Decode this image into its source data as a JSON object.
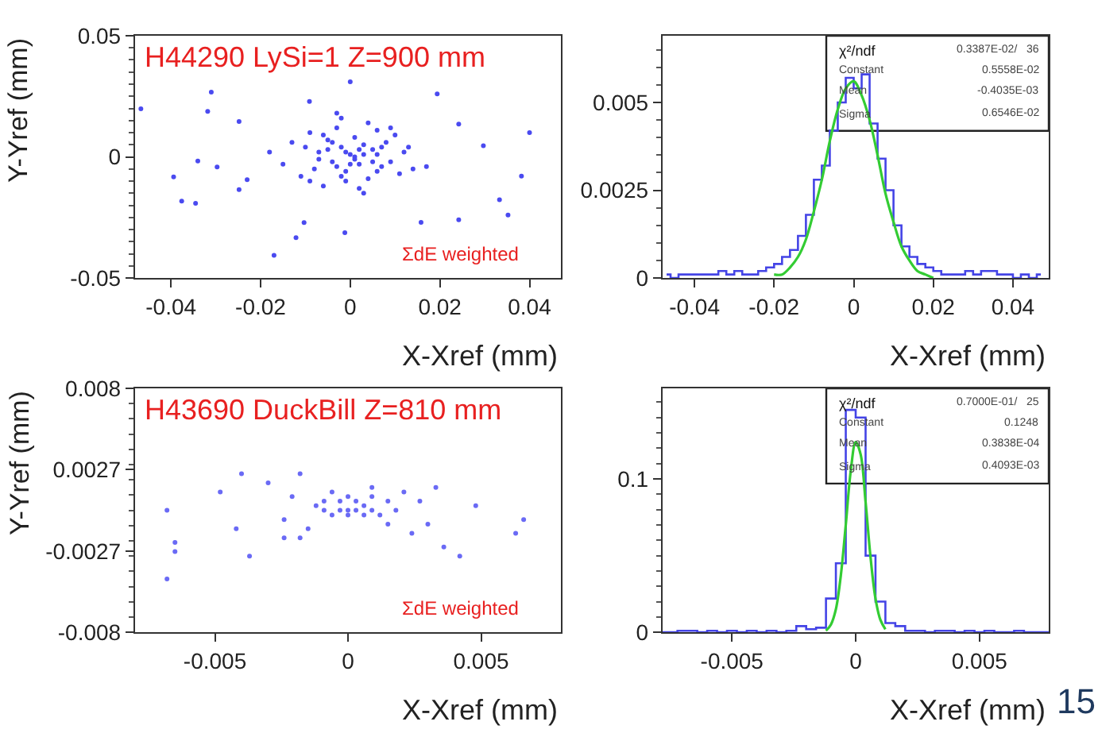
{
  "chart_data": [
    {
      "type": "scatter",
      "xlabel": "X-Xref (mm)",
      "ylabel": "Y-Yref (mm)",
      "marker": "circle",
      "annotations": [
        "H44290 LySi=1 Z=900 mm",
        "ΣdE weighted"
      ],
      "xlim": [
        -0.048,
        0.047
      ],
      "xticks": [
        -0.04,
        -0.02,
        0,
        0.02,
        0.04
      ],
      "ylim": [
        -0.05,
        0.05
      ],
      "yticks": [
        -0.05,
        0,
        0.05
      ],
      "series": [
        {
          "color": "#4a4af0",
          "x": [
            -0.0467,
            -0.0394,
            -0.0376,
            -0.0345,
            -0.0318,
            -0.031,
            -0.0297,
            -0.034,
            -0.0248,
            -0.023,
            -0.017,
            -0.0121,
            -0.0103,
            -0.0012,
            0.0194,
            0.0242,
            0.0297,
            0.0333,
            0.0352,
            0.0382,
            0.04,
            0.0158,
            0,
            -0.0091,
            -0.0248,
            0.0242,
            0.017,
            -0.018,
            -0.015,
            -0.013,
            -0.011,
            -0.01,
            -0.009,
            -0.008,
            -0.007,
            -0.006,
            -0.005,
            -0.004,
            -0.003,
            -0.002,
            -0.001,
            0,
            0.001,
            0.002,
            0.003,
            0.004,
            0.005,
            0.006,
            0.007,
            0.008,
            0.009,
            0.01,
            0.011,
            0.012,
            0.013,
            0.014,
            -0.007,
            -0.005,
            -0.003,
            -0.001,
            0.001,
            0.003,
            0.005,
            0.007,
            -0.004,
            -0.002,
            0,
            0.002,
            0.004,
            0.006,
            -0.006,
            -0.002,
            0.002,
            0.006,
            0.009,
            -0.009,
            0.003,
            -0.003,
            0.001,
            -0.001
          ],
          "values": [
            0.0198,
            -0.0083,
            -0.0183,
            -0.0192,
            0.0188,
            0.0267,
            -0.0042,
            -0.0017,
            -0.0135,
            -0.0094,
            -0.0406,
            -0.0333,
            -0.0271,
            -0.0313,
            0.026,
            -0.026,
            0.0046,
            -0.0177,
            -0.024,
            -0.0079,
            0.01,
            -0.027,
            0.031,
            0.0229,
            0.0146,
            0.0135,
            -0.004,
            0.002,
            -0.003,
            0.006,
            -0.008,
            0.004,
            0.01,
            -0.005,
            0.002,
            -0.012,
            0.007,
            -0.002,
            0.012,
            0.004,
            -0.006,
            0.001,
            0.008,
            -0.003,
            0.005,
            -0.009,
            0.003,
            0.011,
            -0.004,
            0.006,
            -0.002,
            0.009,
            -0.007,
            0.002,
            0.004,
            -0.005,
            -0.001,
            0.003,
            -0.004,
            0.002,
            -0.001,
            0.001,
            -0.002,
            0.004,
            0.006,
            -0.008,
            -0.003,
            0.003,
            0.014,
            -0.006,
            0.009,
            0.016,
            -0.013,
            0.001,
            0.012,
            -0.01,
            -0.015,
            0.018,
            0,
            -0.01
          ]
        }
      ]
    },
    {
      "type": "step",
      "xlabel": "X-Xref (mm)",
      "annotations": [
        "χ²/ndf",
        "0.3387E-02/   36",
        "Constant",
        "0.5558E-02",
        "Mean",
        "-0.4035E-03",
        "Sigma",
        "0.6546E-02"
      ],
      "xlim": [
        -0.048,
        0.049
      ],
      "xticks": [
        -0.04,
        -0.02,
        0,
        0.02,
        0.04
      ],
      "ylim": [
        0,
        0.0069
      ],
      "yticks": [
        0,
        0.0025,
        0.005
      ],
      "series": [
        {
          "type": "step",
          "color": "#4444e6",
          "x": [
            -0.047,
            -0.045,
            -0.043,
            -0.041,
            -0.039,
            -0.037,
            -0.035,
            -0.033,
            -0.031,
            -0.029,
            -0.027,
            -0.025,
            -0.023,
            -0.021,
            -0.019,
            -0.017,
            -0.015,
            -0.013,
            -0.011,
            -0.009,
            -0.007,
            -0.005,
            -0.003,
            -0.001,
            0.001,
            0.003,
            0.005,
            0.007,
            0.009,
            0.011,
            0.013,
            0.015,
            0.017,
            0.019,
            0.021,
            0.023,
            0.025,
            0.027,
            0.029,
            0.031,
            0.033,
            0.035,
            0.037,
            0.039,
            0.041,
            0.043,
            0.045,
            0.047
          ],
          "values": [
            0.0001,
            0,
            0.0001,
            0.0001,
            0.0001,
            0.0001,
            0.0001,
            0.0002,
            0.0001,
            0.0002,
            0.0001,
            0.0001,
            0.0002,
            0.0003,
            0.0004,
            0.0006,
            0.0008,
            0.0012,
            0.0018,
            0.0028,
            0.0032,
            0.0042,
            0.005,
            0.0057,
            0.0054,
            0.0058,
            0.0044,
            0.0034,
            0.0025,
            0.0015,
            0.0009,
            0.0006,
            0.0004,
            0.0003,
            0.0002,
            0.0001,
            0.0001,
            0.0001,
            0.0002,
            0.0001,
            0.0002,
            0.0002,
            0.0001,
            0.0001,
            0,
            0.0001,
            0,
            0.0001
          ]
        },
        {
          "type": "line",
          "color": "#33cc33",
          "x": [
            -0.02,
            -0.018,
            -0.016,
            -0.014,
            -0.012,
            -0.01,
            -0.008,
            -0.006,
            -0.004,
            -0.002,
            0,
            0.002,
            0.004,
            0.006,
            0.008,
            0.01,
            0.012,
            0.014,
            0.016,
            0.018,
            0.02
          ],
          "values": [
            0.0001,
            0.0001,
            0.0003,
            0.0006,
            0.0011,
            0.0019,
            0.0028,
            0.0039,
            0.0048,
            0.0054,
            0.0056,
            0.0052,
            0.0045,
            0.0035,
            0.0024,
            0.0016,
            0.0009,
            0.0005,
            0.0002,
            0.0001,
            0
          ]
        }
      ]
    },
    {
      "type": "scatter",
      "xlabel": "X-Xref (mm)",
      "ylabel": "Y-Yref (mm)",
      "marker": "circle",
      "annotations": [
        "H43690 DuckBill Z=810 mm",
        "ΣdE weighted"
      ],
      "xlim": [
        -0.008,
        0.008
      ],
      "xticks": [
        -0.005,
        0,
        0.005
      ],
      "ylim": [
        -0.008,
        0.008
      ],
      "yticks": [
        -0.008,
        {
          "value": -0.00267,
          "label": "-0.0027"
        },
        {
          "value": 0.00267,
          "label": "0.0027"
        },
        0.008
      ],
      "series": [
        {
          "color": "#6a6af5",
          "x": [
            -0.0068,
            -0.0065,
            -0.0065,
            -0.0068,
            -0.0048,
            -0.0042,
            -0.004,
            -0.0037,
            -0.003,
            -0.0024,
            -0.0024,
            -0.0021,
            -0.0018,
            -0.0018,
            -0.0012,
            -0.0009,
            -0.0009,
            -0.0006,
            -0.0006,
            -0.0003,
            -0.0003,
            0,
            0,
            0,
            0.0003,
            0.0003,
            0.0006,
            0.0006,
            0.0009,
            0.0009,
            0.0012,
            0.0015,
            0.0018,
            0.0021,
            0.0024,
            0.0027,
            0.003,
            0.0033,
            0.0036,
            0.0042,
            0.0048,
            0.0063,
            0.0066,
            0.0009,
            -0.0015,
            0.0015
          ],
          "values": [
            0.0,
            -0.0027,
            -0.0021,
            -0.0045,
            0.0012,
            -0.0012,
            0.0024,
            -0.003,
            0.0018,
            -0.0006,
            -0.0018,
            0.0009,
            -0.0018,
            0.0024,
            0.0003,
            0.0,
            0.0006,
            -0.0003,
            0.0012,
            0.0,
            0.0006,
            0.0,
            -0.0003,
            0.0009,
            0.0,
            0.0006,
            -0.0003,
            0.0003,
            0.0,
            0.0009,
            -0.0003,
            0.0006,
            0.0,
            0.0012,
            -0.0015,
            0.0006,
            -0.0009,
            0.0015,
            -0.0024,
            -0.003,
            0.0003,
            -0.0015,
            -0.0006,
            0.0015,
            -0.0012,
            -0.0009
          ]
        }
      ]
    },
    {
      "type": "step",
      "xlabel": "X-Xref (mm)",
      "annotations": [
        "χ²/ndf",
        "0.7000E-01/   25",
        "Constant",
        "0.1248",
        "Mean",
        "0.3838E-04",
        "Sigma",
        "0.4093E-03",
        "15"
      ],
      "xlim": [
        -0.0078,
        0.0078
      ],
      "xticks": [
        -0.005,
        0,
        0.005
      ],
      "ylim": [
        0,
        0.159
      ],
      "yticks": [
        0,
        0.1
      ],
      "series": [
        {
          "type": "step",
          "color": "#4444e6",
          "x": [
            -0.0078,
            -0.0074,
            -0.007,
            -0.0066,
            -0.0062,
            -0.0058,
            -0.0054,
            -0.005,
            -0.0046,
            -0.0042,
            -0.0038,
            -0.0034,
            -0.003,
            -0.0026,
            -0.0022,
            -0.0018,
            -0.0014,
            -0.001,
            -0.0006,
            -0.0002,
            0.0002,
            0.0006,
            0.001,
            0.0014,
            0.0018,
            0.0022,
            0.0026,
            0.003,
            0.0034,
            0.0038,
            0.0042,
            0.0046,
            0.005,
            0.0054,
            0.0058,
            0.0062,
            0.0066,
            0.007,
            0.0074,
            0.0078
          ],
          "values": [
            0,
            0,
            0.001,
            0.001,
            0,
            0.001,
            0,
            0.001,
            0,
            0.001,
            0,
            0.001,
            0,
            0.001,
            0.004,
            0.002,
            0.003,
            0.022,
            0.045,
            0.145,
            0.14,
            0.05,
            0.02,
            0.006,
            0.004,
            0.001,
            0.001,
            0,
            0.001,
            0.001,
            0,
            0.001,
            0,
            0.001,
            0,
            0,
            0.001,
            0,
            0,
            0
          ]
        },
        {
          "type": "line",
          "color": "#33cc33",
          "x": [
            -0.0012,
            -0.001,
            -0.0008,
            -0.0006,
            -0.0004,
            -0.0002,
            0,
            0.0002,
            0.0004,
            0.0006,
            0.0008,
            0.001,
            0.0012
          ],
          "values": [
            0.001,
            0.005,
            0.015,
            0.037,
            0.07,
            0.105,
            0.124,
            0.116,
            0.085,
            0.049,
            0.022,
            0.008,
            0.002
          ]
        }
      ]
    }
  ]
}
